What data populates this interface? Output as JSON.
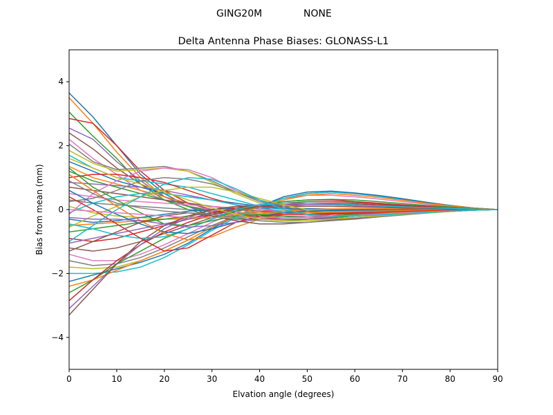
{
  "suptitle": {
    "left": "GING20M",
    "right": "NONE"
  },
  "chart_data": {
    "type": "line",
    "title": "Delta Antenna Phase Biases: GLONASS-L1",
    "xlabel": "Elvation angle (degrees)",
    "ylabel": "Bias from mean (mm)",
    "xlim": [
      0,
      90
    ],
    "ylim": [
      -5,
      5
    ],
    "xticks": [
      0,
      10,
      20,
      30,
      40,
      50,
      60,
      70,
      80,
      90
    ],
    "yticks": [
      -4,
      -2,
      0,
      2,
      4
    ],
    "xtick_labels": [
      "0",
      "10",
      "20",
      "30",
      "40",
      "50",
      "60",
      "70",
      "80",
      "90"
    ],
    "ytick_labels": [
      "−4",
      "−2",
      "0",
      "2",
      "4"
    ],
    "grid": false,
    "legend": "none",
    "x": [
      0,
      5,
      10,
      15,
      20,
      25,
      30,
      35,
      40,
      45,
      50,
      55,
      60,
      65,
      70,
      75,
      80,
      85,
      90
    ],
    "colors": [
      "#1f77b4",
      "#ff7f0e",
      "#2ca02c",
      "#d62728",
      "#9467bd",
      "#8c564b",
      "#e377c2",
      "#7f7f7f",
      "#bcbd22",
      "#17becf"
    ],
    "series": [
      {
        "values": [
          3.65,
          2.9,
          2.0,
          1.1,
          0.5,
          0.1,
          -0.2,
          -0.3,
          -0.3,
          -0.3,
          -0.3,
          -0.25,
          -0.2,
          -0.15,
          -0.1,
          -0.07,
          -0.04,
          -0.02,
          0
        ]
      },
      {
        "values": [
          3.5,
          2.7,
          1.8,
          1.0,
          0.4,
          0.1,
          -0.1,
          -0.2,
          -0.25,
          -0.3,
          -0.3,
          -0.25,
          -0.2,
          -0.15,
          -0.1,
          -0.07,
          -0.04,
          -0.02,
          0
        ]
      },
      {
        "values": [
          3.05,
          2.3,
          1.6,
          0.8,
          0.3,
          0.0,
          -0.2,
          -0.3,
          -0.3,
          -0.35,
          -0.3,
          -0.25,
          -0.2,
          -0.15,
          -0.1,
          -0.06,
          -0.03,
          -0.01,
          0
        ]
      },
      {
        "values": [
          2.85,
          2.7,
          2.0,
          1.2,
          0.6,
          0.2,
          0.0,
          -0.15,
          -0.25,
          -0.3,
          -0.3,
          -0.25,
          -0.2,
          -0.15,
          -0.1,
          -0.07,
          -0.04,
          -0.02,
          0
        ]
      },
      {
        "values": [
          2.55,
          2.2,
          1.5,
          0.9,
          0.4,
          0.1,
          -0.1,
          -0.2,
          -0.25,
          -0.25,
          -0.2,
          -0.2,
          -0.15,
          -0.12,
          -0.08,
          -0.05,
          -0.03,
          -0.01,
          0
        ]
      },
      {
        "values": [
          2.4,
          1.9,
          1.3,
          0.8,
          0.4,
          0.2,
          0.0,
          -0.1,
          -0.2,
          -0.2,
          -0.2,
          -0.15,
          -0.12,
          -0.1,
          -0.07,
          -0.05,
          -0.03,
          -0.01,
          0
        ]
      },
      {
        "values": [
          2.2,
          1.6,
          1.1,
          0.6,
          0.3,
          0.1,
          0.0,
          -0.1,
          -0.15,
          -0.2,
          -0.2,
          -0.15,
          -0.12,
          -0.1,
          -0.07,
          -0.05,
          -0.03,
          -0.01,
          0
        ]
      },
      {
        "values": [
          2.05,
          1.5,
          1.25,
          1.3,
          1.35,
          1.2,
          0.9,
          0.55,
          0.25,
          0.05,
          -0.05,
          -0.1,
          -0.1,
          -0.08,
          -0.06,
          -0.04,
          -0.02,
          -0.01,
          0
        ]
      },
      {
        "values": [
          1.85,
          1.45,
          1.2,
          1.25,
          1.3,
          1.2,
          0.85,
          0.5,
          0.2,
          0.0,
          -0.05,
          -0.08,
          -0.08,
          -0.07,
          -0.05,
          -0.03,
          -0.02,
          -0.01,
          0
        ]
      },
      {
        "values": [
          1.7,
          1.3,
          1.0,
          0.9,
          0.8,
          0.7,
          0.5,
          0.3,
          0.1,
          0.0,
          -0.05,
          -0.05,
          -0.05,
          -0.04,
          -0.03,
          -0.02,
          -0.01,
          0,
          0
        ]
      },
      {
        "values": [
          1.5,
          1.2,
          0.9,
          0.7,
          0.5,
          0.4,
          0.3,
          0.2,
          0.1,
          0.05,
          0.0,
          0.0,
          0.0,
          0.0,
          0.0,
          0.0,
          0.0,
          0.0,
          0
        ]
      },
      {
        "values": [
          1.35,
          1.0,
          0.8,
          0.6,
          0.4,
          0.2,
          0.1,
          0.0,
          -0.1,
          -0.15,
          -0.15,
          -0.12,
          -0.1,
          -0.08,
          -0.06,
          -0.04,
          -0.02,
          -0.01,
          0
        ]
      },
      {
        "values": [
          1.2,
          0.9,
          0.7,
          0.5,
          0.3,
          0.1,
          -0.05,
          -0.15,
          -0.2,
          -0.25,
          -0.25,
          -0.2,
          -0.15,
          -0.12,
          -0.08,
          -0.05,
          -0.03,
          -0.01,
          0
        ]
      },
      {
        "values": [
          1.0,
          1.1,
          1.1,
          1.0,
          0.85,
          0.6,
          0.35,
          0.15,
          0.0,
          -0.1,
          -0.15,
          -0.15,
          -0.12,
          -0.1,
          -0.07,
          -0.05,
          -0.03,
          -0.01,
          0
        ]
      },
      {
        "values": [
          0.85,
          0.8,
          0.75,
          0.7,
          0.6,
          0.45,
          0.3,
          0.15,
          0.05,
          -0.05,
          -0.1,
          -0.1,
          -0.08,
          -0.06,
          -0.05,
          -0.03,
          -0.02,
          -0.01,
          0
        ]
      },
      {
        "values": [
          0.7,
          0.6,
          0.5,
          0.4,
          0.3,
          0.2,
          0.1,
          0.0,
          -0.05,
          -0.1,
          -0.1,
          -0.1,
          -0.08,
          -0.06,
          -0.04,
          -0.03,
          -0.02,
          -0.01,
          0
        ]
      },
      {
        "values": [
          0.5,
          0.4,
          0.3,
          0.25,
          0.2,
          0.15,
          0.1,
          0.05,
          0.0,
          -0.05,
          -0.05,
          -0.05,
          -0.04,
          -0.03,
          -0.02,
          -0.01,
          -0.01,
          0,
          0
        ]
      },
      {
        "values": [
          0.3,
          0.2,
          0.15,
          0.1,
          0.05,
          0.0,
          -0.05,
          -0.1,
          -0.1,
          -0.1,
          -0.1,
          -0.08,
          -0.06,
          -0.05,
          -0.03,
          -0.02,
          -0.01,
          0,
          0
        ]
      },
      {
        "values": [
          0.1,
          -0.1,
          -0.2,
          -0.25,
          -0.3,
          -0.3,
          -0.25,
          -0.2,
          -0.15,
          -0.1,
          -0.05,
          -0.03,
          -0.02,
          -0.01,
          0,
          0,
          0,
          0,
          0
        ]
      },
      {
        "values": [
          -0.1,
          0.2,
          0.4,
          0.5,
          0.5,
          0.4,
          0.3,
          0.15,
          0.05,
          -0.05,
          -0.1,
          -0.1,
          -0.08,
          -0.06,
          -0.04,
          -0.03,
          -0.02,
          -0.01,
          0
        ]
      },
      {
        "values": [
          -0.3,
          -0.4,
          -0.35,
          -0.25,
          -0.15,
          -0.05,
          0.0,
          0.05,
          0.05,
          0.05,
          0.03,
          0.02,
          0.01,
          0,
          0,
          0,
          0,
          0,
          0
        ]
      },
      {
        "values": [
          -0.5,
          -0.45,
          -0.4,
          -0.35,
          -0.3,
          -0.25,
          -0.2,
          -0.15,
          -0.1,
          -0.05,
          0.0,
          0.02,
          0.03,
          0.03,
          0.02,
          0.01,
          0.01,
          0,
          0
        ]
      },
      {
        "values": [
          -0.7,
          -0.6,
          -0.5,
          -0.4,
          -0.3,
          -0.2,
          -0.1,
          0.0,
          0.1,
          0.15,
          0.15,
          0.15,
          0.12,
          0.1,
          0.07,
          0.05,
          0.03,
          0.01,
          0
        ]
      },
      {
        "values": [
          -0.9,
          -1.0,
          -0.9,
          -0.7,
          -0.5,
          -0.3,
          -0.1,
          0.05,
          0.15,
          0.25,
          0.3,
          0.3,
          0.25,
          0.2,
          0.15,
          0.1,
          0.05,
          0.02,
          0
        ]
      },
      {
        "values": [
          -1.05,
          -0.9,
          -0.75,
          -0.6,
          -0.45,
          -0.3,
          -0.15,
          -0.05,
          0.05,
          0.1,
          0.15,
          0.15,
          0.12,
          0.1,
          0.07,
          0.05,
          0.03,
          0.01,
          0
        ]
      },
      {
        "values": [
          -1.2,
          -1.3,
          -1.2,
          -1.0,
          -0.75,
          -0.5,
          -0.25,
          -0.05,
          0.1,
          0.2,
          0.25,
          0.25,
          0.22,
          0.18,
          0.13,
          0.09,
          0.05,
          0.02,
          0
        ]
      },
      {
        "values": [
          -1.4,
          -1.6,
          -1.6,
          -1.4,
          -1.1,
          -0.75,
          -0.4,
          -0.1,
          0.15,
          0.35,
          0.45,
          0.45,
          0.4,
          0.33,
          0.25,
          0.17,
          0.1,
          0.04,
          0
        ]
      },
      {
        "values": [
          -1.6,
          -1.75,
          -1.7,
          -1.5,
          -1.2,
          -0.85,
          -0.5,
          -0.2,
          0.1,
          0.35,
          0.5,
          0.55,
          0.5,
          0.42,
          0.32,
          0.22,
          0.13,
          0.05,
          0
        ]
      },
      {
        "values": [
          -1.8,
          -1.85,
          -1.8,
          -1.6,
          -1.3,
          -0.95,
          -0.55,
          -0.2,
          0.1,
          0.35,
          0.5,
          0.55,
          0.52,
          0.44,
          0.34,
          0.23,
          0.13,
          0.05,
          0
        ]
      },
      {
        "values": [
          -2.0,
          -2.0,
          -1.95,
          -1.8,
          -1.5,
          -1.1,
          -0.65,
          -0.25,
          0.1,
          0.35,
          0.5,
          0.55,
          0.5,
          0.42,
          0.32,
          0.22,
          0.13,
          0.05,
          0
        ]
      },
      {
        "values": [
          -2.25,
          -2.05,
          -1.85,
          -1.65,
          -1.4,
          -1.05,
          -0.6,
          -0.2,
          0.1,
          0.4,
          0.55,
          0.58,
          0.52,
          0.44,
          0.34,
          0.23,
          0.13,
          0.05,
          0
        ]
      },
      {
        "values": [
          -2.4,
          -2.2,
          -1.9,
          -1.6,
          -1.3,
          -0.95,
          -0.55,
          -0.2,
          0.1,
          0.3,
          0.45,
          0.5,
          0.45,
          0.38,
          0.29,
          0.2,
          0.12,
          0.05,
          0
        ]
      },
      {
        "values": [
          -2.6,
          -2.2,
          -1.7,
          -1.3,
          -0.9,
          -0.6,
          -0.3,
          -0.05,
          0.1,
          0.25,
          0.3,
          0.32,
          0.3,
          0.25,
          0.19,
          0.13,
          0.08,
          0.03,
          0
        ]
      },
      {
        "values": [
          -2.85,
          -2.2,
          -1.6,
          -1.1,
          -0.7,
          -0.4,
          -0.15,
          0.0,
          0.1,
          0.15,
          0.2,
          0.2,
          0.18,
          0.15,
          0.11,
          0.08,
          0.05,
          0.02,
          0
        ]
      },
      {
        "values": [
          -3.1,
          -2.4,
          -1.7,
          -1.1,
          -0.6,
          -0.25,
          0.0,
          0.1,
          0.15,
          0.15,
          0.15,
          0.15,
          0.13,
          0.11,
          0.08,
          0.06,
          0.04,
          0.02,
          0
        ]
      },
      {
        "values": [
          -3.3,
          -2.5,
          -1.7,
          -1.0,
          -0.5,
          -0.2,
          0.0,
          0.1,
          0.1,
          0.1,
          0.1,
          0.1,
          0.08,
          0.07,
          0.05,
          0.04,
          0.02,
          0.01,
          0
        ]
      },
      {
        "values": [
          -0.15,
          0.5,
          0.9,
          1.2,
          1.3,
          1.25,
          1.0,
          0.6,
          0.3,
          0.0,
          -0.15,
          -0.2,
          -0.2,
          -0.17,
          -0.13,
          -0.09,
          -0.05,
          -0.02,
          0
        ]
      },
      {
        "values": [
          0.25,
          0.35,
          0.6,
          0.9,
          1.0,
          0.95,
          0.8,
          0.55,
          0.3,
          0.1,
          -0.05,
          -0.1,
          -0.1,
          -0.08,
          -0.06,
          -0.04,
          -0.02,
          -0.01,
          0
        ]
      },
      {
        "values": [
          -0.55,
          -0.2,
          0.1,
          0.4,
          0.6,
          0.7,
          0.7,
          0.55,
          0.35,
          0.15,
          0.0,
          -0.08,
          -0.1,
          -0.09,
          -0.07,
          -0.05,
          -0.03,
          -0.01,
          0
        ]
      },
      {
        "values": [
          -0.45,
          -0.6,
          -0.8,
          -0.9,
          -0.85,
          -0.6,
          -0.3,
          0.0,
          0.15,
          0.2,
          0.2,
          0.18,
          0.15,
          0.12,
          0.09,
          0.06,
          0.04,
          0.02,
          0
        ]
      },
      {
        "values": [
          0.6,
          0.2,
          -0.15,
          -0.45,
          -0.7,
          -0.75,
          -0.6,
          -0.4,
          -0.2,
          -0.1,
          -0.05,
          -0.03,
          -0.02,
          -0.01,
          0,
          0,
          0,
          0,
          0
        ]
      },
      {
        "values": [
          1.1,
          0.6,
          0.1,
          -0.35,
          -0.75,
          -0.95,
          -0.85,
          -0.55,
          -0.3,
          -0.15,
          -0.1,
          -0.08,
          -0.06,
          -0.05,
          -0.03,
          -0.02,
          -0.01,
          0,
          0
        ]
      },
      {
        "values": [
          1.3,
          0.7,
          0.3,
          -0.1,
          -0.45,
          -0.5,
          -0.35,
          -0.2,
          -0.15,
          -0.2,
          -0.25,
          -0.25,
          -0.2,
          -0.16,
          -0.12,
          -0.08,
          -0.05,
          -0.02,
          0
        ]
      },
      {
        "values": [
          0.4,
          0.0,
          -0.45,
          -0.9,
          -1.3,
          -1.2,
          -0.8,
          -0.4,
          -0.2,
          -0.15,
          -0.15,
          -0.12,
          -0.1,
          -0.08,
          -0.06,
          -0.04,
          -0.02,
          -0.01,
          0
        ]
      },
      {
        "values": [
          -0.25,
          -0.3,
          -0.3,
          -0.35,
          -0.45,
          -0.55,
          -0.5,
          -0.4,
          -0.3,
          -0.3,
          -0.3,
          -0.28,
          -0.25,
          -0.2,
          -0.15,
          -0.1,
          -0.06,
          -0.02,
          0
        ]
      },
      {
        "values": [
          -1.3,
          -1.0,
          -0.7,
          -0.4,
          -0.2,
          -0.1,
          -0.2,
          -0.35,
          -0.45,
          -0.45,
          -0.4,
          -0.33,
          -0.27,
          -0.21,
          -0.15,
          -0.1,
          -0.06,
          -0.02,
          0
        ]
      },
      {
        "values": [
          0.0,
          -0.05,
          -0.1,
          -0.15,
          -0.2,
          -0.25,
          -0.25,
          -0.25,
          -0.25,
          -0.25,
          -0.25,
          -0.22,
          -0.18,
          -0.14,
          -0.1,
          -0.07,
          -0.04,
          -0.02,
          0
        ]
      },
      {
        "values": [
          0.9,
          0.5,
          0.2,
          0.05,
          -0.05,
          -0.1,
          -0.15,
          -0.25,
          -0.35,
          -0.4,
          -0.4,
          -0.35,
          -0.3,
          -0.23,
          -0.17,
          -0.11,
          -0.06,
          -0.02,
          0
        ]
      },
      {
        "values": [
          1.6,
          1.3,
          1.0,
          0.8,
          0.55,
          0.3,
          0.05,
          -0.15,
          -0.3,
          -0.35,
          -0.35,
          -0.3,
          -0.25,
          -0.2,
          -0.15,
          -0.1,
          -0.06,
          -0.02,
          0
        ]
      },
      {
        "values": [
          -1.0,
          -0.5,
          0.0,
          0.4,
          0.8,
          1.0,
          0.95,
          0.65,
          0.3,
          0.0,
          -0.15,
          -0.2,
          -0.2,
          -0.17,
          -0.13,
          -0.09,
          -0.05,
          -0.02,
          0
        ]
      }
    ]
  }
}
